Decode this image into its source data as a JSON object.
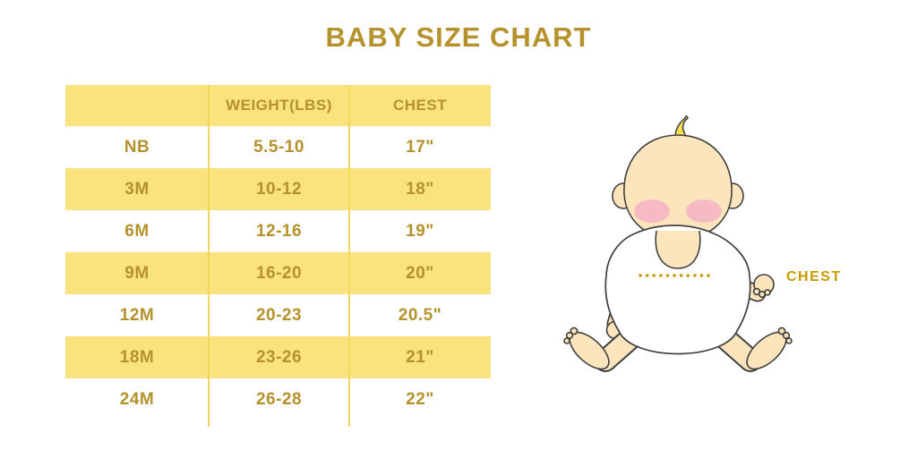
{
  "page": {
    "title": "BABY SIZE CHART"
  },
  "table": {
    "headers": [
      "",
      "WEIGHT(LBS)",
      "CHEST"
    ],
    "rows": [
      {
        "size": "NB",
        "weight": "5.5-10",
        "chest": "17\""
      },
      {
        "size": "3M",
        "weight": "10-12",
        "chest": "18\""
      },
      {
        "size": "6M",
        "weight": "12-16",
        "chest": "19\""
      },
      {
        "size": "9M",
        "weight": "16-20",
        "chest": "20\""
      },
      {
        "size": "12M",
        "weight": "20-23",
        "chest": "20.5\""
      },
      {
        "size": "18M",
        "weight": "23-26",
        "chest": "21\""
      },
      {
        "size": "24M",
        "weight": "26-28",
        "chest": "22\""
      }
    ]
  },
  "chart_data": {
    "type": "table",
    "title": "BABY SIZE CHART",
    "columns": [
      "",
      "WEIGHT(LBS)",
      "CHEST"
    ],
    "rows": [
      [
        "NB",
        "5.5-10",
        "17\""
      ],
      [
        "3M",
        "10-12",
        "18\""
      ],
      [
        "6M",
        "12-16",
        "19\""
      ],
      [
        "9M",
        "16-20",
        "20\""
      ],
      [
        "12M",
        "20-23",
        "20.5\""
      ],
      [
        "18M",
        "23-26",
        "21\""
      ],
      [
        "24M",
        "26-28",
        "22\""
      ]
    ],
    "layout_hints": {
      "striped_rows": true,
      "header_background": "#FAE27D",
      "stripe_background": "#FAE27D"
    }
  },
  "illustration": {
    "icon": "baby-sitting-icon",
    "measure_label": "CHEST",
    "measure_line_style": "dotted"
  },
  "colors": {
    "gold_text": "#B5922C",
    "row_yellow": "#FAE27D",
    "divider_yellow": "#F3D75C",
    "label_gold": "#C79A00",
    "skin": "#FCE5BD",
    "cheek": "#F5B3C5",
    "hair": "#F8DD55",
    "outline": "#3F3F3F",
    "cloth": "#FFFFFF",
    "background": "#FFFFFF"
  }
}
